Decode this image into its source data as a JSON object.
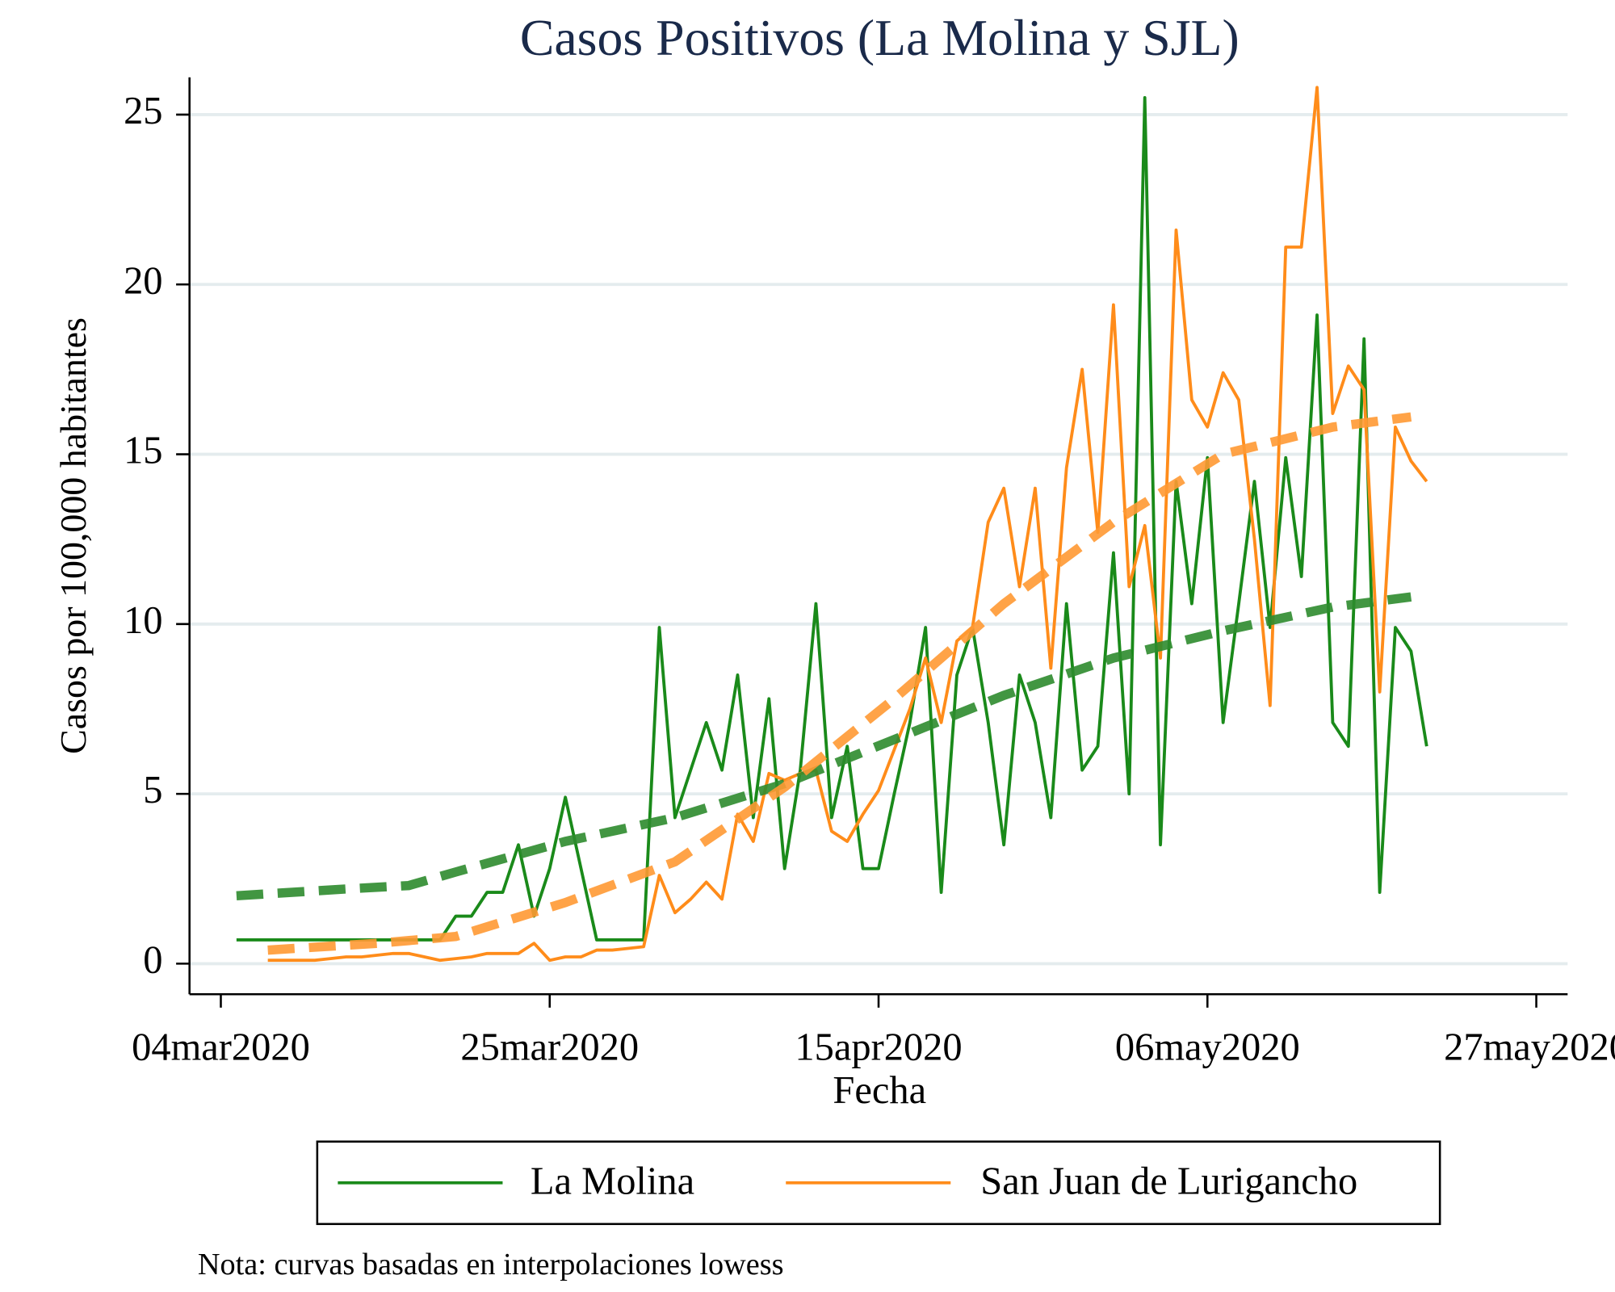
{
  "chart_data": {
    "type": "line",
    "title": "Casos Positivos (La Molina y SJL)",
    "x_label": "Fecha",
    "y_label": "Casos por 100,000 habitantes",
    "note": "Nota: curvas basadas en interpolaciones lowess",
    "xlim": [
      "2020-03-02",
      "2020-05-29"
    ],
    "xticks": [
      {
        "value": "2020-03-04",
        "label": "04mar2020"
      },
      {
        "value": "2020-03-25",
        "label": "25mar2020"
      },
      {
        "value": "2020-04-15",
        "label": "15apr2020"
      },
      {
        "value": "2020-05-06",
        "label": "06may2020"
      },
      {
        "value": "2020-05-27",
        "label": "27may2020"
      }
    ],
    "ylim": [
      -0.9,
      26.1
    ],
    "yticks": [
      0,
      5,
      10,
      15,
      20,
      25
    ],
    "grid": true,
    "series": [
      {
        "name": "La Molina",
        "color": "#1a8a1a",
        "x": [
          "2020-03-05",
          "2020-03-06",
          "2020-03-07",
          "2020-03-08",
          "2020-03-09",
          "2020-03-10",
          "2020-03-11",
          "2020-03-12",
          "2020-03-13",
          "2020-03-14",
          "2020-03-15",
          "2020-03-16",
          "2020-03-17",
          "2020-03-18",
          "2020-03-19",
          "2020-03-20",
          "2020-03-21",
          "2020-03-22",
          "2020-03-23",
          "2020-03-24",
          "2020-03-25",
          "2020-03-26",
          "2020-03-27",
          "2020-03-28",
          "2020-03-29",
          "2020-03-30",
          "2020-03-31",
          "2020-04-01",
          "2020-04-02",
          "2020-04-03",
          "2020-04-04",
          "2020-04-05",
          "2020-04-06",
          "2020-04-07",
          "2020-04-08",
          "2020-04-09",
          "2020-04-10",
          "2020-04-11",
          "2020-04-12",
          "2020-04-13",
          "2020-04-14",
          "2020-04-15",
          "2020-04-16",
          "2020-04-17",
          "2020-04-18",
          "2020-04-19",
          "2020-04-20",
          "2020-04-21",
          "2020-04-22",
          "2020-04-23",
          "2020-04-24",
          "2020-04-25",
          "2020-04-26",
          "2020-04-27",
          "2020-04-28",
          "2020-04-29",
          "2020-04-30",
          "2020-05-01",
          "2020-05-02",
          "2020-05-03",
          "2020-05-04",
          "2020-05-05",
          "2020-05-06",
          "2020-05-07",
          "2020-05-08",
          "2020-05-09",
          "2020-05-10",
          "2020-05-11",
          "2020-05-12",
          "2020-05-13",
          "2020-05-14",
          "2020-05-15",
          "2020-05-16",
          "2020-05-17",
          "2020-05-18",
          "2020-05-19",
          "2020-05-20"
        ],
        "values": [
          0.7,
          0.7,
          0.7,
          0.7,
          0.7,
          0.7,
          0.7,
          0.7,
          0.7,
          0.7,
          0.7,
          0.7,
          0.7,
          0.7,
          1.4,
          1.4,
          2.1,
          2.1,
          3.5,
          1.4,
          2.8,
          4.9,
          2.8,
          0.7,
          0.7,
          0.7,
          0.7,
          9.9,
          4.3,
          5.7,
          7.1,
          5.7,
          8.5,
          4.3,
          7.8,
          2.8,
          5.7,
          10.6,
          4.3,
          6.4,
          2.8,
          2.8,
          5.0,
          7.1,
          9.9,
          2.1,
          8.5,
          9.9,
          7.1,
          3.5,
          8.5,
          7.1,
          4.3,
          10.6,
          5.7,
          6.4,
          12.1,
          5.0,
          25.5,
          3.5,
          14.2,
          10.6,
          14.9,
          7.1,
          10.6,
          14.2,
          9.9,
          14.9,
          11.4,
          19.1,
          7.1,
          6.4,
          18.4,
          2.1,
          9.9,
          9.2,
          6.4
        ]
      },
      {
        "name": "San Juan de Lurigancho",
        "color": "#ff8c1a",
        "x": [
          "2020-03-07",
          "2020-03-08",
          "2020-03-09",
          "2020-03-10",
          "2020-03-11",
          "2020-03-12",
          "2020-03-13",
          "2020-03-14",
          "2020-03-15",
          "2020-03-16",
          "2020-03-17",
          "2020-03-18",
          "2020-03-19",
          "2020-03-20",
          "2020-03-21",
          "2020-03-22",
          "2020-03-23",
          "2020-03-24",
          "2020-03-25",
          "2020-03-26",
          "2020-03-27",
          "2020-03-28",
          "2020-03-29",
          "2020-03-30",
          "2020-03-31",
          "2020-04-01",
          "2020-04-02",
          "2020-04-03",
          "2020-04-04",
          "2020-04-05",
          "2020-04-06",
          "2020-04-07",
          "2020-04-08",
          "2020-04-09",
          "2020-04-10",
          "2020-04-11",
          "2020-04-12",
          "2020-04-13",
          "2020-04-14",
          "2020-04-15",
          "2020-04-16",
          "2020-04-17",
          "2020-04-18",
          "2020-04-19",
          "2020-04-20",
          "2020-04-21",
          "2020-04-22",
          "2020-04-23",
          "2020-04-24",
          "2020-04-25",
          "2020-04-26",
          "2020-04-27",
          "2020-04-28",
          "2020-04-29",
          "2020-04-30",
          "2020-05-01",
          "2020-05-02",
          "2020-05-03",
          "2020-05-04",
          "2020-05-05",
          "2020-05-06",
          "2020-05-07",
          "2020-05-08",
          "2020-05-09",
          "2020-05-10",
          "2020-05-11",
          "2020-05-12",
          "2020-05-13",
          "2020-05-14",
          "2020-05-15",
          "2020-05-16",
          "2020-05-17",
          "2020-05-18",
          "2020-05-19",
          "2020-05-20"
        ],
        "values": [
          0.1,
          0.1,
          0.1,
          0.1,
          0.15,
          0.2,
          0.2,
          0.25,
          0.3,
          0.3,
          0.2,
          0.1,
          0.15,
          0.2,
          0.3,
          0.3,
          0.3,
          0.6,
          0.1,
          0.2,
          0.2,
          0.4,
          0.4,
          0.45,
          0.5,
          2.6,
          1.5,
          1.9,
          2.4,
          1.9,
          4.4,
          3.6,
          5.6,
          5.4,
          5.6,
          5.7,
          3.9,
          3.6,
          4.4,
          5.1,
          6.3,
          7.5,
          9.0,
          7.1,
          9.5,
          9.9,
          13.0,
          14.0,
          11.1,
          14.0,
          8.7,
          14.6,
          17.5,
          12.7,
          19.4,
          11.1,
          12.9,
          9.0,
          21.6,
          16.6,
          15.8,
          17.4,
          16.6,
          12.5,
          7.6,
          21.1,
          21.1,
          25.8,
          16.2,
          17.6,
          16.9,
          8.0,
          15.8,
          14.8,
          14.2
        ]
      }
    ],
    "trends": [
      {
        "color": "#2e8b2e",
        "x": [
          "2020-03-05",
          "2020-03-12",
          "2020-03-16",
          "2020-03-19",
          "2020-03-26",
          "2020-04-02",
          "2020-04-09",
          "2020-04-16",
          "2020-04-23",
          "2020-04-30",
          "2020-05-07",
          "2020-05-14",
          "2020-05-19"
        ],
        "values": [
          2.0,
          2.2,
          2.3,
          2.7,
          3.6,
          4.3,
          5.3,
          6.6,
          7.9,
          9.0,
          9.8,
          10.5,
          10.8
        ]
      },
      {
        "color": "#ff9933",
        "x": [
          "2020-03-07",
          "2020-03-14",
          "2020-03-19",
          "2020-03-26",
          "2020-04-02",
          "2020-04-09",
          "2020-04-16",
          "2020-04-23",
          "2020-04-30",
          "2020-05-07",
          "2020-05-14",
          "2020-05-19"
        ],
        "values": [
          0.4,
          0.6,
          0.8,
          1.8,
          3.0,
          5.2,
          7.8,
          10.6,
          13.0,
          15.0,
          15.8,
          16.1
        ]
      }
    ]
  }
}
